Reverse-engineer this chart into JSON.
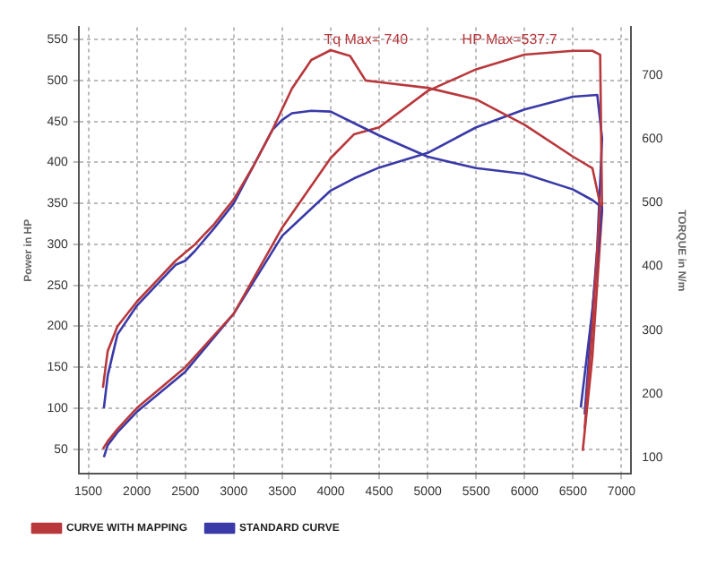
{
  "chart_data": {
    "type": "line",
    "xlabel": null,
    "ylabel": "Power in HP",
    "y2label": "TORQUE in N/m",
    "xlim": [
      1400,
      7100
    ],
    "xticks": [
      1500,
      2000,
      2500,
      3000,
      3500,
      4000,
      4500,
      5000,
      5500,
      6000,
      6500,
      7000
    ],
    "ylim": [
      20,
      565
    ],
    "yticks": [
      50,
      100,
      150,
      200,
      250,
      300,
      350,
      400,
      450,
      500,
      550
    ],
    "y2lim": [
      75,
      775
    ],
    "y2ticks": [
      100,
      200,
      300,
      400,
      500,
      600,
      700
    ],
    "grid": true,
    "legend": "bottom",
    "marker": "none",
    "line_style": "solid",
    "annotations": [
      "Tq Max= 740",
      "HP Max=537.7"
    ],
    "series": [
      {
        "name": "CURVE WITH MAPPING",
        "color": "#b8383c",
        "x": [
          1650,
          1700,
          1800,
          2000,
          2200,
          2400,
          2500,
          2600,
          2800,
          3000,
          3200,
          3400,
          3600,
          3800,
          4000,
          4200,
          4360,
          4500,
          5000,
          5500,
          6000,
          6500,
          6700,
          6780,
          6700,
          6620
        ],
        "values": [
          125,
          170,
          200,
          230,
          255,
          280,
          290,
          300,
          325,
          355,
          395,
          440,
          490,
          525,
          537,
          530,
          500,
          498,
          491,
          477,
          446,
          407,
          393,
          349,
          200,
          75
        ]
      },
      {
        "name": "STANDARD CURVE",
        "color": "#3a3aa8",
        "x": [
          1660,
          1700,
          1800,
          2000,
          2200,
          2400,
          2500,
          2600,
          2800,
          3000,
          3200,
          3400,
          3500,
          3600,
          3800,
          4000,
          4240,
          4500,
          5000,
          5500,
          6000,
          6500,
          6700,
          6800,
          6700,
          6580
        ],
        "values": [
          100,
          140,
          190,
          225,
          250,
          275,
          280,
          292,
          320,
          350,
          395,
          440,
          452,
          460,
          463,
          462,
          448,
          433,
          407,
          393,
          386,
          367,
          354,
          345,
          220,
          101
        ]
      },
      {
        "color": "#b8383c",
        "axis": "y2",
        "x": [
          1650,
          1700,
          1800,
          2000,
          2500,
          3000,
          3500,
          4000,
          4240,
          4500,
          5000,
          5500,
          6000,
          6500,
          6700,
          6780,
          6800,
          6700,
          6600
        ],
        "values": [
          114,
          126,
          145,
          178,
          242,
          326,
          461,
          570,
          607,
          618,
          675,
          709,
          732,
          738,
          738,
          732,
          487,
          259,
          111
        ]
      },
      {
        "color": "#3a3aa8",
        "axis": "y2",
        "x": [
          1660,
          1700,
          1800,
          2000,
          2500,
          3000,
          3500,
          4000,
          4240,
          4500,
          5000,
          5500,
          6000,
          6500,
          6750,
          6800,
          6750,
          6620
        ],
        "values": [
          101,
          120,
          140,
          172,
          235,
          326,
          448,
          519,
          538,
          555,
          578,
          618,
          646,
          666,
          669,
          601,
          430,
          168
        ]
      }
    ]
  }
}
